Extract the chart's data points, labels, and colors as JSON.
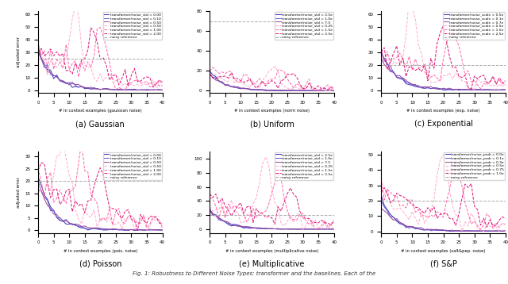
{
  "subplot_titles": [
    "(a) Gaussian",
    "(b) Uniform",
    "(c) Exponential",
    "(d) Poisson",
    "(e) Multiplicative",
    "(f) S&P"
  ],
  "xlabel_gaussian": "# in context examples (gaussian noise)",
  "xlabel_uniform": "# in context examples (norm noise)",
  "xlabel_exponential": "# in context examples (exp. noise)",
  "xlabel_poisson": "# in context examples (pois. noise)",
  "xlabel_multiplicative": "# in context examples (multiplicative noise)",
  "xlabel_snp": "# in context examples (salt&pep. noise)",
  "ylabel": "adjusted error",
  "figsize": [
    6.4,
    3.58
  ],
  "dpi": 100,
  "caption": "Fig. 1: Robustness to Different Noise Types: transformer and the baselines. Each of the",
  "solid_colors": [
    "#3333bb",
    "#6655cc",
    "#994499"
  ],
  "dashed_colors": [
    "#ffaacc",
    "#ff66aa",
    "#dd1177"
  ],
  "ref_color": "#aaaaaa",
  "subplots": [
    {
      "ref": 25,
      "ylim": [
        -2,
        62
      ],
      "yticks": [
        0,
        10,
        20,
        30,
        40,
        50,
        60
      ],
      "solid_labels": [
        "transformer/noise_std = 0.00",
        "transformer/noise_std = 0.10",
        "transformer/noise_std = 0.50"
      ],
      "dashed_labels": [
        "transformer/noise_std = 0.50",
        "transformer/noise_std = 1.00",
        "transformer/noise_std = 2.00"
      ],
      "ref_label": "noisy reference"
    },
    {
      "ref": 70,
      "ylim": [
        -2,
        78
      ],
      "yticks": [
        0,
        20,
        40,
        60,
        80
      ],
      "solid_labels": [
        "transformer/noise_std = 2.5e",
        "transformer/noise_std = 1.0e",
        "transformer/noise_std = 7.5"
      ],
      "dashed_labels": [
        "transformer/noise_std = 0.25",
        "transformer/noise_std = 1.5e",
        "transformer/noise_std = 2.5e"
      ],
      "ref_label": "noisy reference"
    },
    {
      "ref": 20,
      "ylim": [
        -2,
        62
      ],
      "yticks": [
        0,
        10,
        20,
        30,
        40,
        50,
        60
      ],
      "solid_labels": [
        "transformer/noise_scale = 0.5e",
        "transformer/noise_scale = 0.1e",
        "transformer/noise_scale = 0.7e"
      ],
      "dashed_labels": [
        "transformer/noise_scale = 0.5e",
        "transformer/noise_scale = 1.5e",
        "transformer/noise_scale = 2.5e"
      ],
      "ref_label": "noisy reference"
    },
    {
      "ref": 20,
      "ylim": [
        -1,
        32
      ],
      "yticks": [
        0,
        5,
        10,
        15,
        20,
        25,
        30
      ],
      "solid_labels": [
        "transformer/noise_std = 0.00",
        "transformer/noise_std = 0.10",
        "transformer/noise_std = 0.50"
      ],
      "dashed_labels": [
        "transformer/noise_std = 0.50",
        "transformer/noise_std = 1.00",
        "transformer/noise_std = 2.00"
      ],
      "ref_label": "noisy reference"
    },
    {
      "ref": 20,
      "ylim": [
        -5,
        110
      ],
      "yticks": [
        0,
        20,
        40,
        60,
        80,
        100
      ],
      "solid_labels": [
        "transformer/noise_std = 2.5e",
        "transformer/noise_std = 1.0e",
        "transformer/noise_std = 7.5"
      ],
      "dashed_labels": [
        "transformer/noise_std = 0.25",
        "transformer/noise_std = 1.5e",
        "transformer/noise_std = 2.5e"
      ],
      "ref_label": "noisy reference"
    },
    {
      "ref": 20,
      "ylim": [
        -1,
        52
      ],
      "yticks": [
        0,
        10,
        20,
        30,
        40,
        50
      ],
      "solid_labels": [
        "transformer/noise_prob = 0.0e",
        "transformer/noise_prob = 0.1e",
        "transformer/noise_prob = 0.3e"
      ],
      "dashed_labels": [
        "transformer/noise_prob = 0.5e",
        "transformer/noise_prob = 0.75",
        "transformer/noise_prob = 1.0e"
      ],
      "ref_label": "noisy reference"
    }
  ]
}
